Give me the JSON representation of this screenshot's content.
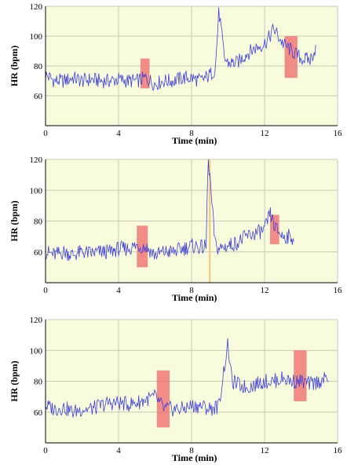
{
  "chart_data": [
    {
      "type": "line",
      "xlabel": "Time (min)",
      "ylabel": "HR (bpm)",
      "xlim": [
        0,
        16
      ],
      "ylim": [
        40,
        120
      ],
      "xticks": [
        0,
        4,
        8,
        12,
        16
      ],
      "yticks": [
        60,
        80,
        100,
        120
      ],
      "grid": true,
      "colors": {
        "line": "#4040d8",
        "highlight": "#f07070",
        "background": "#f8fbdc"
      },
      "highlights": [
        {
          "x": [
            5.2,
            5.7
          ],
          "y": [
            65,
            85
          ]
        },
        {
          "x": [
            13.1,
            13.8
          ],
          "y": [
            72,
            100
          ]
        }
      ],
      "markers": [],
      "series": [
        {
          "x": [
            0,
            0.5,
            1,
            1.5,
            2,
            2.5,
            3,
            3.5,
            4,
            4.5,
            5,
            5.5,
            6,
            6.5,
            7,
            7.5,
            8,
            8.5,
            9,
            9.3,
            9.5,
            9.8,
            10,
            10.5,
            11,
            11.5,
            12,
            12.3,
            12.5,
            13,
            13.5,
            14,
            14.5,
            14.8
          ],
          "y": [
            74,
            70,
            70,
            72,
            70,
            71,
            70,
            70,
            71,
            70,
            70,
            72,
            68,
            70,
            70,
            72,
            72,
            70,
            74,
            78,
            117,
            85,
            82,
            82,
            88,
            92,
            95,
            100,
            105,
            95,
            90,
            85,
            84,
            92
          ]
        }
      ]
    },
    {
      "type": "line",
      "xlabel": "Time (min)",
      "ylabel": "HR (bpm)",
      "xlim": [
        0,
        16
      ],
      "ylim": [
        40,
        120
      ],
      "xticks": [
        0,
        4,
        8,
        12,
        16
      ],
      "yticks": [
        60,
        80,
        100,
        120
      ],
      "grid": true,
      "colors": {
        "line": "#4040d8",
        "highlight": "#f07070",
        "background": "#f8fbdc"
      },
      "highlights": [
        {
          "x": [
            5.0,
            5.6
          ],
          "y": [
            50,
            77
          ]
        },
        {
          "x": [
            12.3,
            12.8
          ],
          "y": [
            65,
            84
          ]
        }
      ],
      "markers": [
        {
          "x": 9.0,
          "color": "#f5c27a"
        }
      ],
      "series": [
        {
          "x": [
            0,
            0.5,
            1,
            1.5,
            2,
            2.5,
            3,
            3.5,
            4,
            4.5,
            5,
            5.5,
            6,
            6.5,
            7,
            7.5,
            8,
            8.5,
            8.8,
            8.9,
            9.0,
            9.1,
            9.3,
            9.5,
            10,
            10.5,
            11,
            11.5,
            12,
            12.3,
            12.6,
            13,
            13.3,
            13.6
          ],
          "y": [
            60,
            58,
            60,
            58,
            60,
            59,
            60,
            60,
            62,
            62,
            64,
            63,
            58,
            60,
            60,
            62,
            64,
            63,
            63,
            120,
            110,
            93,
            64,
            62,
            64,
            66,
            70,
            72,
            74,
            85,
            75,
            70,
            70,
            69
          ]
        }
      ]
    },
    {
      "type": "line",
      "xlabel": "Time (min)",
      "ylabel": "HR (bpm)",
      "xlim": [
        0,
        16
      ],
      "ylim": [
        40,
        120
      ],
      "xticks": [
        0,
        4,
        8,
        12,
        16
      ],
      "yticks": [
        60,
        80,
        100,
        120
      ],
      "grid": true,
      "colors": {
        "line": "#4040d8",
        "highlight": "#f07070",
        "background": "#f8fbdc"
      },
      "highlights": [
        {
          "x": [
            6.1,
            6.8
          ],
          "y": [
            50,
            87
          ]
        },
        {
          "x": [
            13.6,
            14.3
          ],
          "y": [
            67,
            100
          ]
        }
      ],
      "markers": [],
      "series": [
        {
          "x": [
            0,
            0.5,
            1,
            1.5,
            2,
            2.5,
            3,
            3.5,
            4,
            4.5,
            5,
            5.5,
            6,
            6.5,
            7,
            7.5,
            8,
            8.5,
            9,
            9.5,
            9.8,
            10,
            10.2,
            10.5,
            11,
            11.5,
            12,
            12.5,
            13,
            13.5,
            14,
            14.5,
            15,
            15.5
          ],
          "y": [
            64,
            62,
            63,
            60,
            62,
            62,
            64,
            66,
            66,
            65,
            66,
            68,
            70,
            62,
            62,
            62,
            64,
            64,
            62,
            64,
            90,
            104,
            80,
            78,
            76,
            78,
            80,
            80,
            82,
            80,
            80,
            78,
            80,
            82
          ]
        }
      ]
    }
  ]
}
